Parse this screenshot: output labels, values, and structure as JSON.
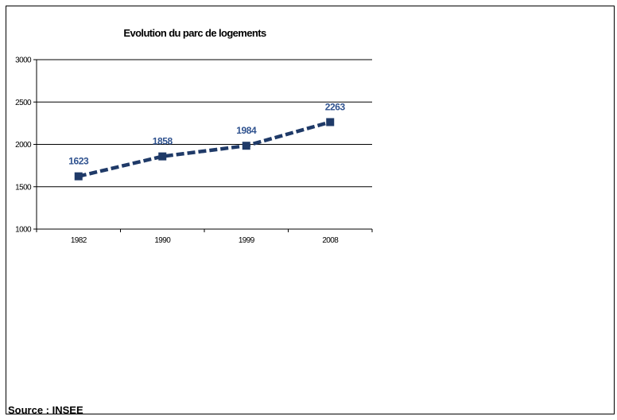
{
  "chart_data": {
    "type": "line",
    "title": "Evolution du parc de logements",
    "categories": [
      "1982",
      "1990",
      "1999",
      "2008"
    ],
    "series": [
      {
        "values": [
          1623,
          1858,
          1984,
          2263
        ]
      }
    ],
    "data_labels": [
      "1623",
      "1858",
      "1984",
      "2263"
    ],
    "ylim": [
      1000,
      3000
    ],
    "yticks": [
      1000,
      1500,
      2000,
      2500,
      3000
    ],
    "ytick_labels": [
      "1000",
      "1500",
      "2000",
      "2500",
      "3000"
    ],
    "grid": true,
    "legend": "none",
    "line_color": "#1f3a68",
    "label_color": "#2f528f"
  },
  "source": "Source : INSEE"
}
